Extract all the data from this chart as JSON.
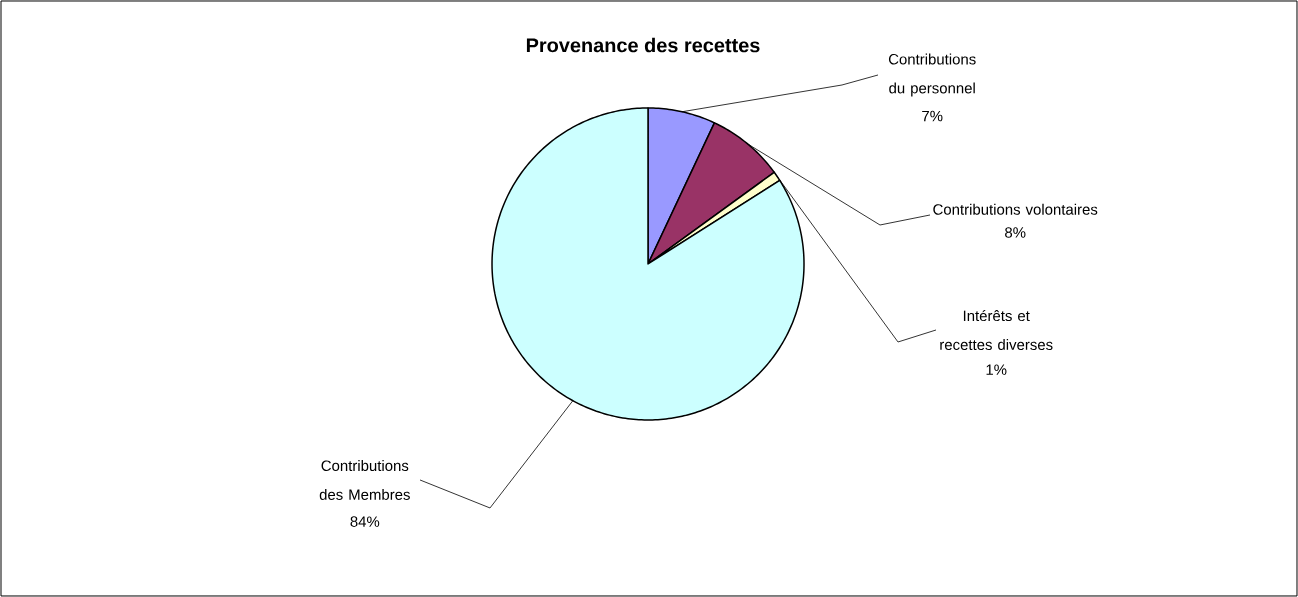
{
  "chart_data": {
    "type": "pie",
    "title": "Provenance des recettes",
    "categories": [
      "Contributions du personnel",
      "Contributions volontaires",
      "Intérêts et recettes diverses",
      "Contributions des Membres"
    ],
    "values": [
      7,
      8,
      1,
      84
    ],
    "colors": [
      "#9999ff",
      "#993366",
      "#ffffcc",
      "#ccffff"
    ],
    "value_labels": [
      "7%",
      "8%",
      "1%",
      "84%"
    ]
  }
}
